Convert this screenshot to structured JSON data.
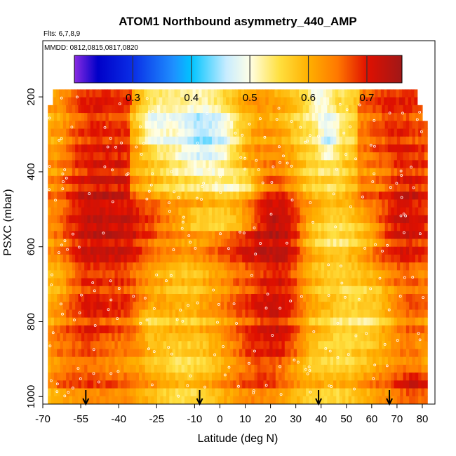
{
  "chart_data": {
    "type": "heatmap",
    "title": "ATOM1 Northbound asymmetry_440_AMP",
    "flights_label": "Flts: 6,7,8,9",
    "dates_label": "MMDD: 0812,0815,0817,0820",
    "xlabel": "Latitude (deg N)",
    "ylabel": "PSXC (mbar)",
    "xlim": [
      -70,
      85
    ],
    "ylim": [
      1020,
      50
    ],
    "x_ticks": [
      -70,
      -55,
      -40,
      -25,
      -10,
      0,
      10,
      20,
      30,
      40,
      50,
      60,
      70,
      80
    ],
    "x_tick_labels": [
      "-70",
      "-55",
      "-40",
      "-25",
      "-10",
      "0",
      "10",
      "20",
      "30",
      "40",
      "50",
      "60",
      "70",
      "80"
    ],
    "y_ticks": [
      200,
      400,
      600,
      800,
      1000
    ],
    "y_tick_labels": [
      "200",
      "400",
      "600",
      "800",
      "1000"
    ],
    "colorbar": {
      "range": [
        0.2,
        0.76
      ],
      "ticks": [
        0.3,
        0.4,
        0.5,
        0.6,
        0.7
      ],
      "tick_labels": [
        "0.3",
        "0.4",
        "0.5",
        "0.6",
        "0.7"
      ],
      "stops": [
        {
          "value": 0.2,
          "color": "#8a2be2"
        },
        {
          "value": 0.24,
          "color": "#0000c8"
        },
        {
          "value": 0.3,
          "color": "#0a2ee6"
        },
        {
          "value": 0.37,
          "color": "#1e90ff"
        },
        {
          "value": 0.4,
          "color": "#00c4ff"
        },
        {
          "value": 0.46,
          "color": "#c8ecff"
        },
        {
          "value": 0.5,
          "color": "#ffffe6"
        },
        {
          "value": 0.55,
          "color": "#ffe040"
        },
        {
          "value": 0.6,
          "color": "#ffb000"
        },
        {
          "value": 0.65,
          "color": "#ff7800"
        },
        {
          "value": 0.7,
          "color": "#e01000"
        },
        {
          "value": 0.76,
          "color": "#a01818"
        }
      ]
    },
    "field_blobs": [
      {
        "lat": -52,
        "p": 550,
        "value": 0.72,
        "lat_sigma": 6,
        "p_sigma": 300
      },
      {
        "lat": -40,
        "p": 600,
        "value": 0.71,
        "lat_sigma": 5,
        "p_sigma": 120
      },
      {
        "lat": -60,
        "p": 900,
        "value": 0.7,
        "lat_sigma": 8,
        "p_sigma": 100
      },
      {
        "lat": 23,
        "p": 650,
        "value": 0.74,
        "lat_sigma": 7,
        "p_sigma": 200
      },
      {
        "lat": 20,
        "p": 880,
        "value": 0.73,
        "lat_sigma": 9,
        "p_sigma": 60
      },
      {
        "lat": 77,
        "p": 980,
        "value": 0.73,
        "lat_sigma": 5,
        "p_sigma": 50
      },
      {
        "lat": -5,
        "p": 300,
        "value": 0.41,
        "lat_sigma": 10,
        "p_sigma": 80
      },
      {
        "lat": -25,
        "p": 270,
        "value": 0.46,
        "lat_sigma": 5,
        "p_sigma": 60
      },
      {
        "lat": 43,
        "p": 300,
        "value": 0.45,
        "lat_sigma": 3,
        "p_sigma": 50
      },
      {
        "lat": 5,
        "p": 440,
        "value": 0.47,
        "lat_sigma": 8,
        "p_sigma": 40
      },
      {
        "lat": 0,
        "p": 530,
        "value": 0.47,
        "lat_sigma": 12,
        "p_sigma": 30
      },
      {
        "lat": 48,
        "p": 560,
        "value": 0.48,
        "lat_sigma": 12,
        "p_sigma": 60
      },
      {
        "lat": 57,
        "p": 780,
        "value": 0.5,
        "lat_sigma": 10,
        "p_sigma": 80
      },
      {
        "lat": 39,
        "p": 210,
        "value": 0.44,
        "lat_sigma": 3,
        "p_sigma": 30
      },
      {
        "lat": -27,
        "p": 800,
        "value": 0.54,
        "lat_sigma": 4,
        "p_sigma": 40
      },
      {
        "lat": 60,
        "p": 420,
        "value": 0.62,
        "lat_sigma": 8,
        "p_sigma": 60
      },
      {
        "lat": 35,
        "p": 950,
        "value": 0.6,
        "lat_sigma": 10,
        "p_sigma": 40
      }
    ],
    "profile_arrows": [
      -53,
      -8,
      39,
      67
    ]
  }
}
